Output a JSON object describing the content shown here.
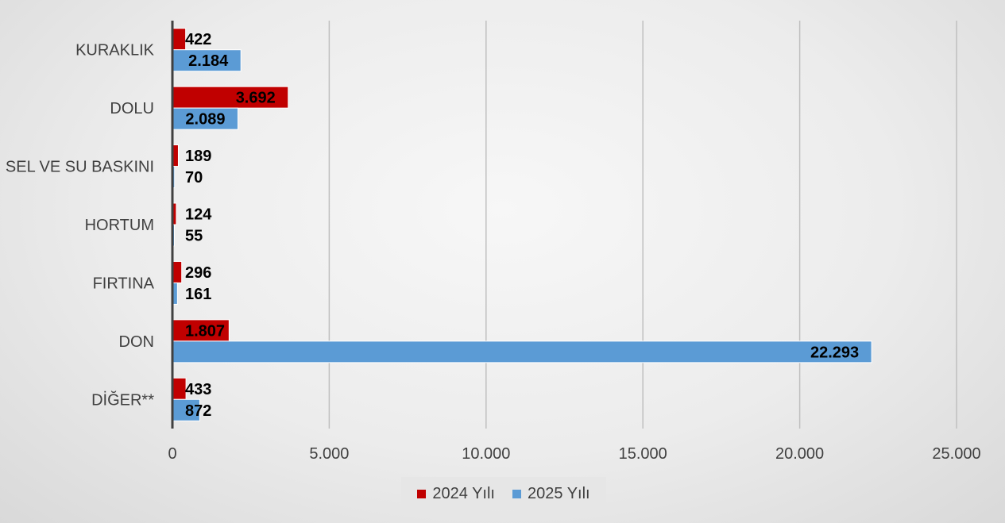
{
  "chart_data": {
    "type": "bar",
    "orientation": "horizontal",
    "title": "",
    "xlabel": "",
    "ylabel": "",
    "categories": [
      "KURAKLIK",
      "DOLU",
      "SEL VE SU BASKINI",
      "HORTUM",
      "FIRTINA",
      "DON",
      "DİĞER**"
    ],
    "series": [
      {
        "name": "2024 Yılı",
        "color": "#C00000",
        "values": [
          422,
          3692,
          189,
          124,
          296,
          1807,
          433
        ],
        "labels": [
          "422",
          "3.692",
          "189",
          "124",
          "296",
          "1.807",
          "433"
        ]
      },
      {
        "name": "2025 Yılı",
        "color": "#5B9BD5",
        "values": [
          2184,
          2089,
          70,
          55,
          161,
          22293,
          872
        ],
        "labels": [
          "2.184",
          "2.089",
          "70",
          "55",
          "161",
          "22.293",
          "872"
        ]
      }
    ],
    "xlim": [
      0,
      25000
    ],
    "ticks": [
      0,
      5000,
      10000,
      15000,
      20000,
      25000
    ],
    "tick_labels": [
      "0",
      "5.000",
      "10.000",
      "15.000",
      "20.000",
      "25.000"
    ],
    "grid": "vertical",
    "legend": "bottom"
  }
}
